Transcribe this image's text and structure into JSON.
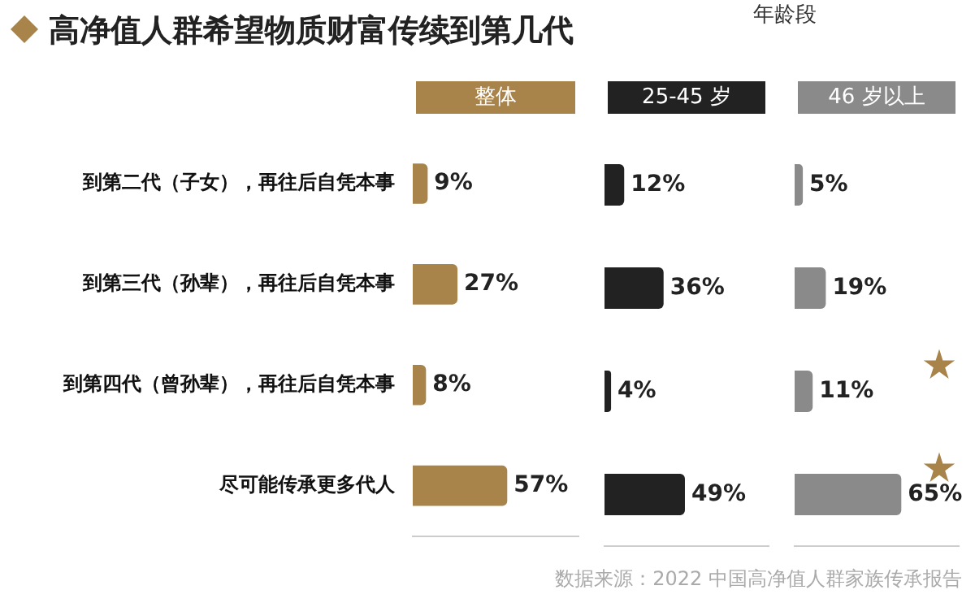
{
  "chart_data": [
    {
      "type": "bar",
      "orientation": "horizontal",
      "title": "高净值人群希望物质财富传续到第几代",
      "categories": [
        "到第二代（子女），再往后自凭本事",
        "到第三代（孙辈），再往后自凭本事",
        "到第四代（曾孙辈），再往后自凭本事",
        "尽可能传承更多代人"
      ],
      "series": [
        {
          "name": "整体",
          "color": "#a8834a",
          "values": [
            9,
            27,
            8,
            57
          ],
          "value_labels": [
            "9%",
            "27%",
            "8%",
            "57%"
          ]
        }
      ],
      "xlim": [
        0,
        100
      ],
      "tick_labels": "y",
      "legend": "top",
      "annotations": [
        "数据来源：2022 中国高净值人群家族传承报告"
      ]
    },
    {
      "type": "bar",
      "orientation": "horizontal",
      "categories": [
        null,
        null,
        null,
        null
      ],
      "series": [
        {
          "name": "25-45 岁",
          "color": "#222222",
          "values": [
            12,
            36,
            4,
            49
          ],
          "value_labels": [
            "12%",
            "36%",
            "4%",
            "49%"
          ]
        }
      ],
      "xlim": [
        0,
        100
      ],
      "tick_labels": false,
      "legend": "top",
      "legend_title": "年龄段"
    },
    {
      "type": "bar",
      "orientation": "horizontal",
      "categories": [
        null,
        null,
        null,
        null
      ],
      "series": [
        {
          "name": "46 岁以上",
          "color": "#8a8a8a",
          "values": [
            5,
            19,
            11,
            65
          ],
          "value_labels": [
            "5%",
            "19%",
            "11%",
            "65%"
          ]
        }
      ],
      "xlim": [
        0,
        100
      ],
      "tick_labels": false,
      "legend": "top"
    }
  ]
}
